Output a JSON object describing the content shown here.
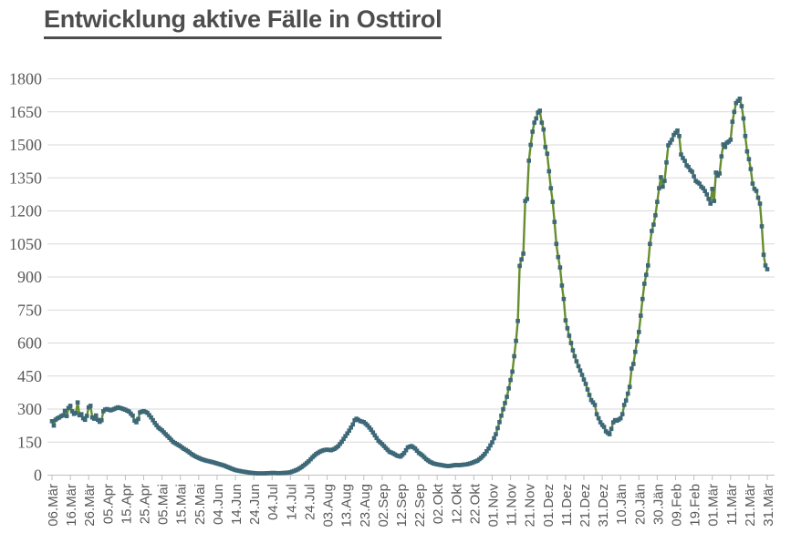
{
  "chart_data": {
    "type": "line",
    "title": "Entwicklung aktive Fälle in Osttirol",
    "xlabel": "",
    "ylabel": "",
    "ylim": [
      0,
      1800
    ],
    "y_ticks": [
      0,
      150,
      300,
      450,
      600,
      750,
      900,
      1050,
      1200,
      1350,
      1500,
      1650,
      1800
    ],
    "x_tick_step_days": 10,
    "x_tick_labels": [
      "06.Mär",
      "16.Mär",
      "26.Mär",
      "05.Apr",
      "15.Apr",
      "25.Apr",
      "05.Mai",
      "15.Mai",
      "25.Mai",
      "04.Jun",
      "14.Jun",
      "24.Jun",
      "04.Jul",
      "14.Jul",
      "24.Jul",
      "03.Aug",
      "13.Aug",
      "23.Aug",
      "02.Sep",
      "12.Sep",
      "22.Sep",
      "02.Okt",
      "12.Okt",
      "22.Okt",
      "01.Nov",
      "11.Nov",
      "21.Nov",
      "01.Dez",
      "11.Dez",
      "21.Dez",
      "31.Dez",
      "10.Jän",
      "20.Jän",
      "30.Jän",
      "09.Feb",
      "19.Feb",
      "01.Mär",
      "11.Mär",
      "21.Mär",
      "31.Mär"
    ],
    "grid": "horizontal",
    "legend": "none",
    "title_color": "#4d4d4d",
    "text_color": "#595959",
    "grid_color": "#d9d9d9",
    "axis_color": "#bfbfbf",
    "series": [
      {
        "name": "aktive Fälle",
        "line_color": "#678e2e",
        "marker_color": "#3d6877",
        "marker_shape": "square",
        "points": [
          [
            0,
            245
          ],
          [
            1,
            225
          ],
          [
            2,
            252
          ],
          [
            3,
            258
          ],
          [
            4,
            262
          ],
          [
            5,
            268
          ],
          [
            6,
            272
          ],
          [
            7,
            292
          ],
          [
            8,
            268
          ],
          [
            9,
            305
          ],
          [
            10,
            315
          ],
          [
            11,
            290
          ],
          [
            12,
            278
          ],
          [
            13,
            282
          ],
          [
            14,
            330
          ],
          [
            15,
            272
          ],
          [
            16,
            277
          ],
          [
            17,
            258
          ],
          [
            18,
            251
          ],
          [
            19,
            269
          ],
          [
            20,
            308
          ],
          [
            21,
            315
          ],
          [
            22,
            262
          ],
          [
            23,
            256
          ],
          [
            24,
            271
          ],
          [
            25,
            251
          ],
          [
            26,
            242
          ],
          [
            27,
            249
          ],
          [
            28,
            290
          ],
          [
            29,
            298
          ],
          [
            30,
            300
          ],
          [
            32,
            294
          ],
          [
            34,
            301
          ],
          [
            36,
            308
          ],
          [
            38,
            303
          ],
          [
            40,
            297
          ],
          [
            42,
            289
          ],
          [
            44,
            270
          ],
          [
            45,
            247
          ],
          [
            46,
            240
          ],
          [
            47,
            255
          ],
          [
            48,
            285
          ],
          [
            50,
            291
          ],
          [
            52,
            283
          ],
          [
            54,
            262
          ],
          [
            56,
            237
          ],
          [
            58,
            216
          ],
          [
            60,
            203
          ],
          [
            62,
            186
          ],
          [
            64,
            169
          ],
          [
            66,
            151
          ],
          [
            68,
            141
          ],
          [
            70,
            131
          ],
          [
            72,
            119
          ],
          [
            74,
            109
          ],
          [
            76,
            96
          ],
          [
            78,
            86
          ],
          [
            80,
            78
          ],
          [
            82,
            71
          ],
          [
            84,
            66
          ],
          [
            86,
            62
          ],
          [
            88,
            58
          ],
          [
            90,
            53
          ],
          [
            92,
            48
          ],
          [
            94,
            43
          ],
          [
            96,
            36
          ],
          [
            98,
            29
          ],
          [
            100,
            23
          ],
          [
            104,
            16
          ],
          [
            108,
            11
          ],
          [
            112,
            8
          ],
          [
            116,
            8
          ],
          [
            120,
            10
          ],
          [
            124,
            9
          ],
          [
            128,
            11
          ],
          [
            130,
            13
          ],
          [
            132,
            19
          ],
          [
            134,
            26
          ],
          [
            136,
            36
          ],
          [
            138,
            49
          ],
          [
            140,
            63
          ],
          [
            142,
            81
          ],
          [
            144,
            96
          ],
          [
            146,
            106
          ],
          [
            148,
            113
          ],
          [
            150,
            116
          ],
          [
            152,
            113
          ],
          [
            154,
            119
          ],
          [
            156,
            131
          ],
          [
            158,
            152
          ],
          [
            160,
            177
          ],
          [
            162,
            202
          ],
          [
            164,
            230
          ],
          [
            165,
            249
          ],
          [
            166,
            256
          ],
          [
            167,
            251
          ],
          [
            168,
            246
          ],
          [
            170,
            241
          ],
          [
            172,
            226
          ],
          [
            174,
            206
          ],
          [
            176,
            181
          ],
          [
            178,
            156
          ],
          [
            180,
            141
          ],
          [
            182,
            123
          ],
          [
            184,
            106
          ],
          [
            186,
            99
          ],
          [
            188,
            89
          ],
          [
            190,
            84
          ],
          [
            192,
            100
          ],
          [
            194,
            126
          ],
          [
            196,
            132
          ],
          [
            198,
            121
          ],
          [
            200,
            101
          ],
          [
            202,
            89
          ],
          [
            204,
            73
          ],
          [
            206,
            61
          ],
          [
            208,
            53
          ],
          [
            210,
            49
          ],
          [
            212,
            46
          ],
          [
            214,
            43
          ],
          [
            216,
            41
          ],
          [
            218,
            43
          ],
          [
            220,
            46
          ],
          [
            222,
            45
          ],
          [
            224,
            47
          ],
          [
            226,
            49
          ],
          [
            228,
            53
          ],
          [
            230,
            59
          ],
          [
            232,
            66
          ],
          [
            234,
            79
          ],
          [
            236,
            96
          ],
          [
            238,
            121
          ],
          [
            240,
            149
          ],
          [
            242,
            186
          ],
          [
            244,
            241
          ],
          [
            246,
            299
          ],
          [
            248,
            356
          ],
          [
            250,
            432
          ],
          [
            251,
            470
          ],
          [
            252,
            540
          ],
          [
            253,
            610
          ],
          [
            254,
            700
          ],
          [
            255,
            950
          ],
          [
            256,
            980
          ],
          [
            257,
            1006
          ],
          [
            258,
            1245
          ],
          [
            259,
            1254
          ],
          [
            260,
            1428
          ],
          [
            261,
            1500
          ],
          [
            262,
            1560
          ],
          [
            263,
            1601
          ],
          [
            264,
            1620
          ],
          [
            265,
            1647
          ],
          [
            266,
            1655
          ],
          [
            267,
            1601
          ],
          [
            268,
            1570
          ],
          [
            269,
            1490
          ],
          [
            270,
            1460
          ],
          [
            271,
            1380
          ],
          [
            272,
            1303
          ],
          [
            273,
            1241
          ],
          [
            274,
            1150
          ],
          [
            275,
            1050
          ],
          [
            276,
            990
          ],
          [
            277,
            943
          ],
          [
            278,
            861
          ],
          [
            279,
            800
          ],
          [
            280,
            703
          ],
          [
            281,
            667
          ],
          [
            282,
            633
          ],
          [
            283,
            600
          ],
          [
            284,
            567
          ],
          [
            285,
            540
          ],
          [
            286,
            517
          ],
          [
            287,
            495
          ],
          [
            288,
            475
          ],
          [
            289,
            455
          ],
          [
            290,
            434
          ],
          [
            291,
            414
          ],
          [
            292,
            389
          ],
          [
            293,
            364
          ],
          [
            294,
            341
          ],
          [
            295,
            330
          ],
          [
            296,
            319
          ],
          [
            297,
            277
          ],
          [
            298,
            258
          ],
          [
            299,
            240
          ],
          [
            300,
            228
          ],
          [
            301,
            219
          ],
          [
            302,
            199
          ],
          [
            303,
            192
          ],
          [
            304,
            186
          ],
          [
            305,
            210
          ],
          [
            306,
            240
          ],
          [
            307,
            250
          ],
          [
            308,
            247
          ],
          [
            309,
            252
          ],
          [
            310,
            258
          ],
          [
            311,
            277
          ],
          [
            312,
            319
          ],
          [
            313,
            339
          ],
          [
            314,
            370
          ],
          [
            315,
            401
          ],
          [
            316,
            484
          ],
          [
            317,
            505
          ],
          [
            318,
            560
          ],
          [
            319,
            608
          ],
          [
            320,
            650
          ],
          [
            321,
            724
          ],
          [
            322,
            800
          ],
          [
            323,
            869
          ],
          [
            324,
            910
          ],
          [
            325,
            952
          ],
          [
            326,
            1050
          ],
          [
            327,
            1109
          ],
          [
            328,
            1138
          ],
          [
            329,
            1180
          ],
          [
            330,
            1241
          ],
          [
            331,
            1303
          ],
          [
            332,
            1353
          ],
          [
            333,
            1310
          ],
          [
            334,
            1336
          ],
          [
            335,
            1420
          ],
          [
            336,
            1498
          ],
          [
            337,
            1510
          ],
          [
            338,
            1523
          ],
          [
            339,
            1545
          ],
          [
            340,
            1555
          ],
          [
            341,
            1565
          ],
          [
            342,
            1540
          ],
          [
            343,
            1456
          ],
          [
            344,
            1440
          ],
          [
            345,
            1427
          ],
          [
            346,
            1407
          ],
          [
            347,
            1400
          ],
          [
            348,
            1385
          ],
          [
            349,
            1378
          ],
          [
            350,
            1357
          ],
          [
            351,
            1336
          ],
          [
            352,
            1330
          ],
          [
            353,
            1324
          ],
          [
            354,
            1310
          ],
          [
            355,
            1303
          ],
          [
            356,
            1290
          ],
          [
            357,
            1275
          ],
          [
            358,
            1254
          ],
          [
            359,
            1233
          ],
          [
            360,
            1300
          ],
          [
            361,
            1245
          ],
          [
            362,
            1374
          ],
          [
            363,
            1360
          ],
          [
            364,
            1370
          ],
          [
            365,
            1448
          ],
          [
            366,
            1502
          ],
          [
            367,
            1490
          ],
          [
            368,
            1510
          ],
          [
            369,
            1515
          ],
          [
            370,
            1523
          ],
          [
            371,
            1605
          ],
          [
            372,
            1650
          ],
          [
            373,
            1690
          ],
          [
            374,
            1700
          ],
          [
            375,
            1710
          ],
          [
            376,
            1676
          ],
          [
            377,
            1620
          ],
          [
            378,
            1540
          ],
          [
            379,
            1470
          ],
          [
            380,
            1435
          ],
          [
            381,
            1390
          ],
          [
            382,
            1324
          ],
          [
            383,
            1300
          ],
          [
            384,
            1291
          ],
          [
            385,
            1260
          ],
          [
            386,
            1233
          ],
          [
            387,
            1130
          ],
          [
            388,
            1001
          ],
          [
            389,
            952
          ],
          [
            390,
            935
          ]
        ]
      }
    ]
  }
}
